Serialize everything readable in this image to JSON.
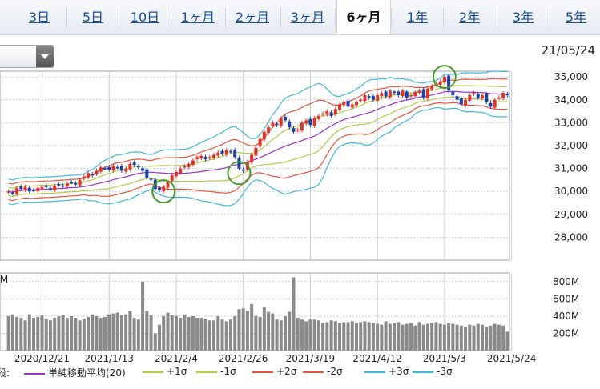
{
  "tabs": [
    "3日",
    "5日",
    "10日",
    "1ヶ月",
    "2ヶ月",
    "3ヶ月",
    "6ヶ月",
    "1年",
    "2年",
    "3年",
    "5年"
  ],
  "active_tab": "6ヶ月",
  "as_of_date": "21/05/24",
  "volume_unit_label": ": M",
  "legend_prefix": "段:",
  "legend": [
    {
      "label": "単純移動平均(20)",
      "color": "#9b30c8"
    },
    {
      "label": "+1σ",
      "color": "#b5c94a"
    },
    {
      "label": "-1σ",
      "color": "#b5c94a"
    },
    {
      "label": "+2σ",
      "color": "#e0553e"
    },
    {
      "label": "-2σ",
      "color": "#e0553e"
    },
    {
      "label": "+3σ",
      "color": "#42b8d8"
    },
    {
      "label": "-3σ",
      "color": "#42b8d8"
    }
  ],
  "colors": {
    "up": "#e0342a",
    "down": "#1c3fa8",
    "volume": "#8a8a8a",
    "grid": "#c7ccd4",
    "marker": "#4a9a2a"
  },
  "chart_data": {
    "type": "candlestick",
    "price_axis": {
      "ticks": [
        28000,
        29000,
        30000,
        31000,
        32000,
        33000,
        34000,
        35000
      ],
      "tick_labels": [
        "28,000",
        "29,000",
        "30,000",
        "31,000",
        "32,000",
        "33,000",
        "34,000",
        "35,000"
      ],
      "range": [
        27000,
        35250
      ]
    },
    "volume_axis": {
      "ticks": [
        200,
        400,
        600,
        800
      ],
      "tick_labels": [
        "200M",
        "400M",
        "600M",
        "800M"
      ],
      "range": [
        0,
        900
      ]
    },
    "x_labels": [
      "2020/12/21",
      "2021/1/13",
      "2021/2/4",
      "2021/2/26",
      "2021/3/19",
      "2021/4/12",
      "2021/5/3",
      "2021/5/24"
    ],
    "x_label_index": [
      8,
      24,
      40,
      56,
      72,
      88,
      104,
      120
    ],
    "close": [
      30000,
      29920,
      30150,
      30100,
      30200,
      30000,
      30050,
      30150,
      30200,
      30180,
      30100,
      30250,
      30300,
      30250,
      30350,
      30400,
      30300,
      30500,
      30650,
      30800,
      30700,
      30900,
      31050,
      31000,
      30950,
      31100,
      31050,
      30900,
      31000,
      31200,
      31150,
      31050,
      30900,
      30600,
      30550,
      30100,
      30050,
      30200,
      30400,
      30700,
      30850,
      31000,
      31100,
      31200,
      31350,
      31500,
      31550,
      31400,
      31500,
      31600,
      31700,
      31650,
      31800,
      31750,
      31500,
      31000,
      30900,
      31300,
      31600,
      31900,
      32300,
      32600,
      32800,
      33000,
      32900,
      33200,
      33100,
      32800,
      32600,
      32700,
      33000,
      33100,
      32900,
      33200,
      33300,
      33400,
      33500,
      33300,
      33600,
      33800,
      33900,
      33700,
      33800,
      33900,
      34000,
      34200,
      34100,
      34000,
      34200,
      34300,
      34150,
      34400,
      34300,
      34200,
      34400,
      34100,
      34200,
      34350,
      34400,
      34100,
      34500,
      34600,
      34700,
      34800,
      35000,
      34400,
      34200,
      34000,
      33800,
      34000,
      34200,
      34300,
      34100,
      34200,
      33900,
      33700,
      34000,
      34100,
      34300,
      34200
    ],
    "volume": [
      400,
      420,
      390,
      380,
      350,
      420,
      380,
      390,
      410,
      370,
      350,
      380,
      400,
      410,
      380,
      400,
      380,
      350,
      370,
      390,
      420,
      400,
      380,
      390,
      420,
      430,
      440,
      410,
      420,
      460,
      380,
      360,
      800,
      460,
      410,
      200,
      300,
      400,
      440,
      410,
      400,
      380,
      420,
      390,
      400,
      380,
      380,
      370,
      350,
      350,
      400,
      360,
      340,
      360,
      400,
      480,
      490,
      460,
      540,
      400,
      390,
      500,
      450,
      430,
      360,
      350,
      400,
      450,
      850,
      380,
      360,
      340,
      360,
      360,
      350,
      320,
      330,
      350,
      340,
      320,
      330,
      330,
      340,
      320,
      330,
      340,
      330,
      320,
      310,
      300,
      340,
      310,
      320,
      330,
      300,
      310,
      320,
      290,
      330,
      300,
      310,
      320,
      330,
      310,
      300,
      320,
      310,
      300,
      290,
      280,
      300,
      290,
      310,
      300,
      280,
      290,
      310,
      300,
      290,
      220
    ],
    "markers": [
      {
        "index": 37,
        "value": 30000
      },
      {
        "index": 55,
        "value": 30800
      },
      {
        "index": 104,
        "value": 35000
      }
    ],
    "ma_period": 20,
    "bands": [
      "+1σ",
      "-1σ",
      "+2σ",
      "-2σ",
      "+3σ",
      "-3σ"
    ]
  }
}
